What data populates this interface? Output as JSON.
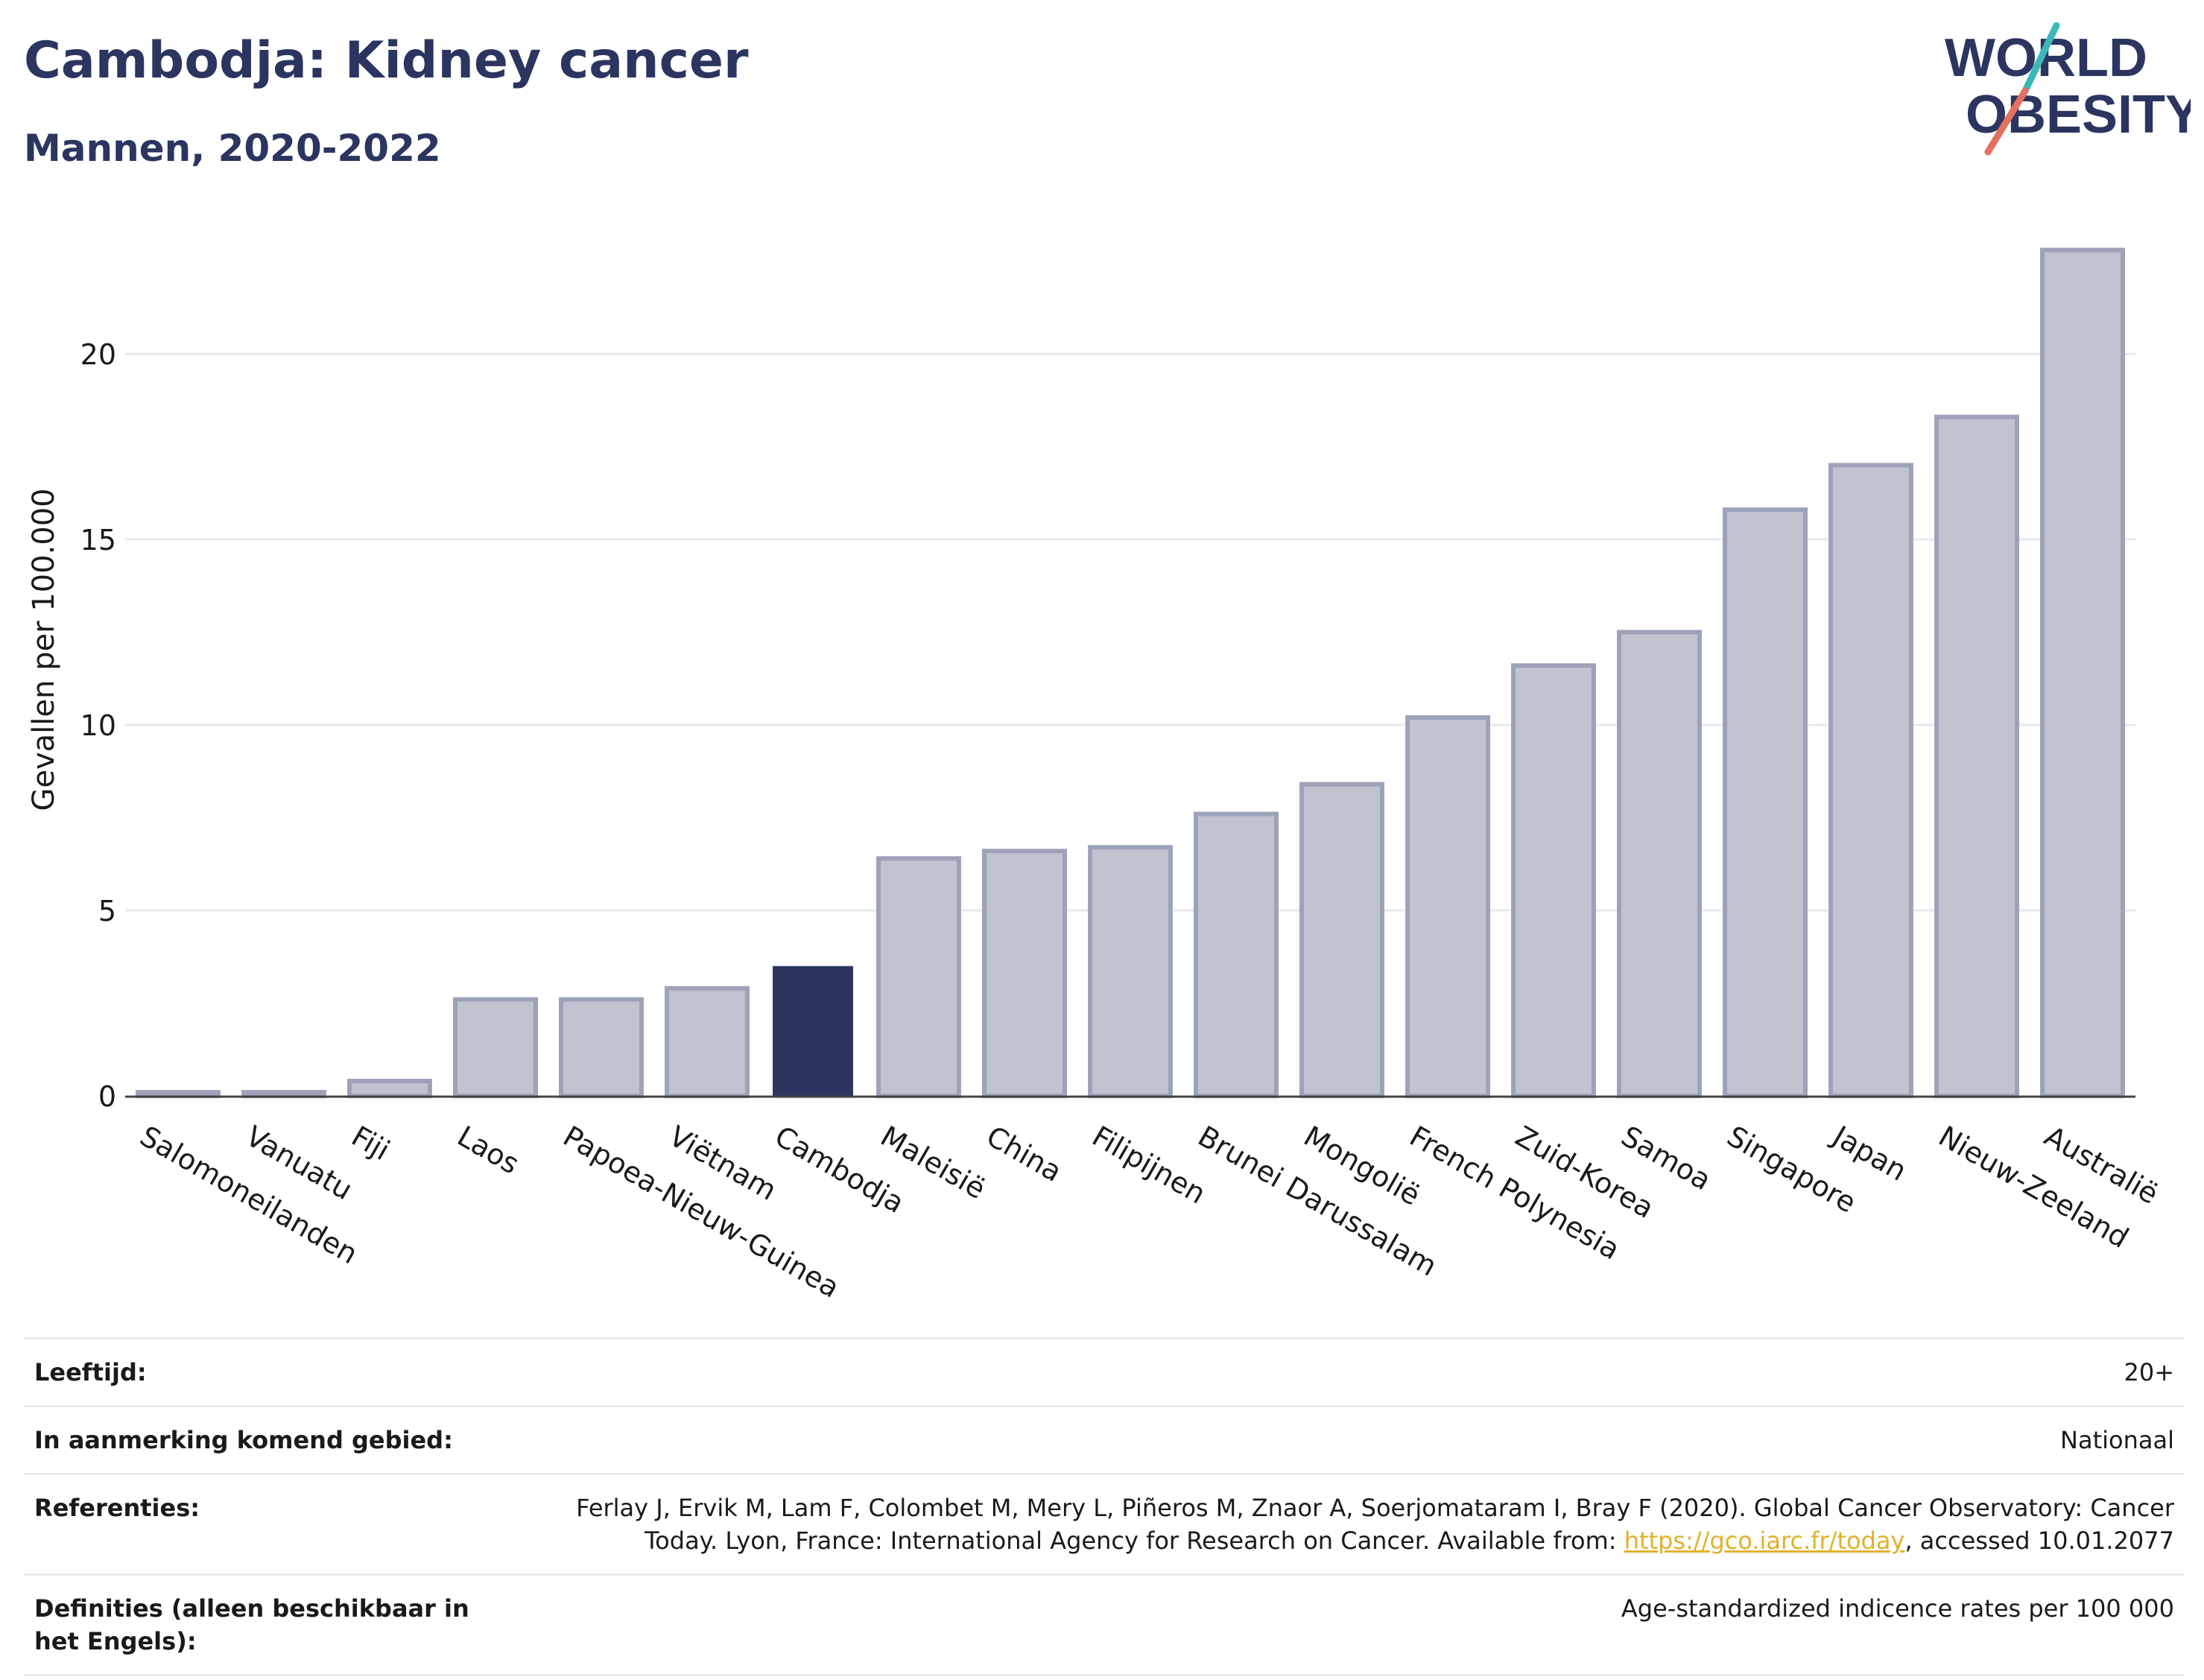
{
  "header": {
    "title": "Cambodja: Kidney cancer",
    "subtitle": "Mannen, 2020-2022"
  },
  "logo": {
    "line1": "WORLD",
    "line2": "OBESITY",
    "icon": "world-obesity-logo"
  },
  "colors": {
    "highlight": "#2b3560",
    "bar": "#c0c3d0",
    "bar_border": "#9da2b8",
    "grid": "#e6e9ef",
    "axis": "#444444"
  },
  "chart_data": {
    "type": "bar",
    "title": "Cambodja: Kidney cancer",
    "subtitle": "Mannen, 2020-2022",
    "xlabel": "",
    "ylabel": "Gevallen per 100.000",
    "ylim": [
      0,
      23.5
    ],
    "yticks": [
      0,
      5,
      10,
      15,
      20
    ],
    "grid": true,
    "highlight": "Cambodja",
    "categories": [
      "Salomoneilanden",
      "Vanuatu",
      "Fiji",
      "Laos",
      "Papoea-Nieuw-Guinea",
      "Viëtnam",
      "Cambodja",
      "Maleisië",
      "China",
      "Filipijnen",
      "Brunei Darussalam",
      "Mongolië",
      "French Polynesia",
      "Zuid-Korea",
      "Samoa",
      "Singapore",
      "Japan",
      "Nieuw-Zeeland",
      "Australië"
    ],
    "values": [
      0.1,
      0.1,
      0.4,
      2.6,
      2.6,
      2.9,
      3.5,
      6.4,
      6.6,
      6.7,
      7.6,
      8.4,
      10.2,
      11.6,
      12.5,
      15.8,
      17.0,
      18.3,
      22.8
    ]
  },
  "meta": {
    "age_label": "Leeftijd:",
    "age_value": "20+",
    "area_label": "In aanmerking komend gebied:",
    "area_value": "Nationaal",
    "ref_label": "Referenties:",
    "ref_text_before": "Ferlay J, Ervik M, Lam F, Colombet M, Mery L, Piñeros M, Znaor A, Soerjomataram I, Bray F (2020). Global Cancer Observatory: Cancer Today. Lyon, France: International Agency for Research on Cancer. Available from: ",
    "ref_link": "https://gco.iarc.fr/today",
    "ref_text_after": ", accessed 10.01.2077",
    "def_label": "Definities (alleen beschikbaar in het Engels):",
    "def_value": "Age-standardized indicence rates per 100 000"
  }
}
